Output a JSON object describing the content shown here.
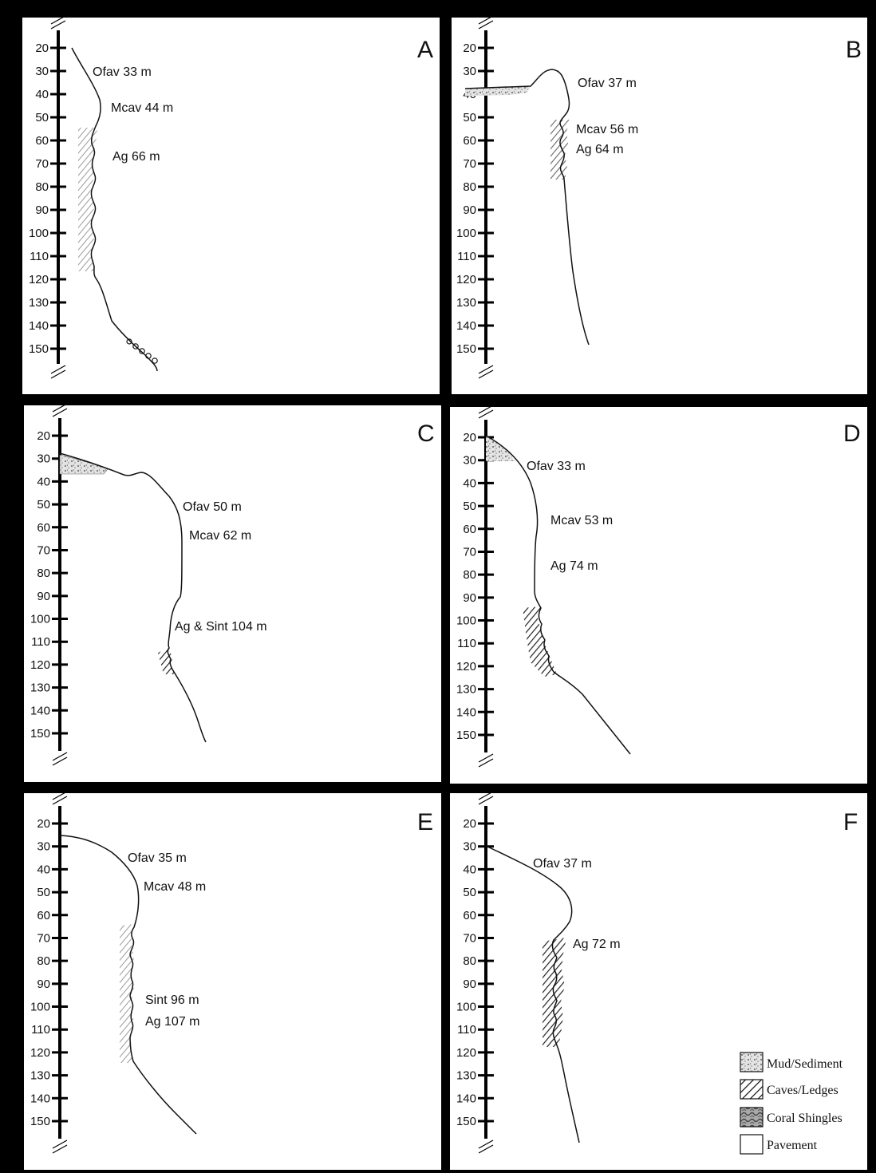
{
  "depth_ticks": [
    20,
    30,
    40,
    50,
    60,
    70,
    80,
    90,
    100,
    110,
    120,
    130,
    140,
    150
  ],
  "panels": [
    {
      "letter": "A",
      "zones": [
        {
          "label": "Ofav 33 m"
        },
        {
          "label": "Mcav 44 m"
        },
        {
          "label": "Ag 66 m"
        }
      ],
      "features": [
        {
          "type": "caves",
          "from_depth": 55,
          "to_depth": 118,
          "intensity": "light"
        },
        {
          "type": "pavement-circles",
          "from_depth": 146,
          "to_depth": 155
        }
      ]
    },
    {
      "letter": "B",
      "zones": [
        {
          "label": "Ofav 37 m"
        },
        {
          "label": "Mcav 56 m"
        },
        {
          "label": "Ag 64 m"
        }
      ],
      "features": [
        {
          "type": "sediment",
          "from_depth": 37,
          "to_depth": 40
        },
        {
          "type": "caves",
          "from_depth": 52,
          "to_depth": 77,
          "intensity": "medium"
        }
      ]
    },
    {
      "letter": "C",
      "zones": [
        {
          "label": "Ofav 50 m"
        },
        {
          "label": "Mcav 62 m"
        },
        {
          "label": "Ag & Sint 104 m"
        }
      ],
      "features": [
        {
          "type": "sediment",
          "from_depth": 28,
          "to_depth": 36
        },
        {
          "type": "caves",
          "from_depth": 115,
          "to_depth": 124,
          "intensity": "dark"
        }
      ]
    },
    {
      "letter": "D",
      "zones": [
        {
          "label": "Ofav 33 m"
        },
        {
          "label": "Mcav 53 m"
        },
        {
          "label": "Ag 74 m"
        }
      ],
      "features": [
        {
          "type": "sediment",
          "from_depth": 20,
          "to_depth": 29
        },
        {
          "type": "caves",
          "from_depth": 93,
          "to_depth": 124,
          "intensity": "dark"
        }
      ]
    },
    {
      "letter": "E",
      "zones": [
        {
          "label": "Ofav 35 m"
        },
        {
          "label": "Mcav 48 m"
        },
        {
          "label": "Sint 96 m"
        },
        {
          "label": "Ag 107 m"
        }
      ],
      "features": [
        {
          "type": "caves",
          "from_depth": 66,
          "to_depth": 124,
          "intensity": "light"
        }
      ]
    },
    {
      "letter": "F",
      "zones": [
        {
          "label": "Ofav 37 m"
        },
        {
          "label": "Ag 72 m"
        }
      ],
      "features": [
        {
          "type": "caves",
          "from_depth": 71,
          "to_depth": 115,
          "intensity": "dark"
        }
      ]
    }
  ],
  "legend": [
    {
      "label": "Mud/Sediment",
      "icon": "mud-sediment-icon"
    },
    {
      "label": "Caves/Ledges",
      "icon": "caves-ledges-icon"
    },
    {
      "label": "Coral Shingles",
      "icon": "coral-shingles-icon"
    },
    {
      "label": "Pavement",
      "icon": "pavement-icon"
    }
  ]
}
